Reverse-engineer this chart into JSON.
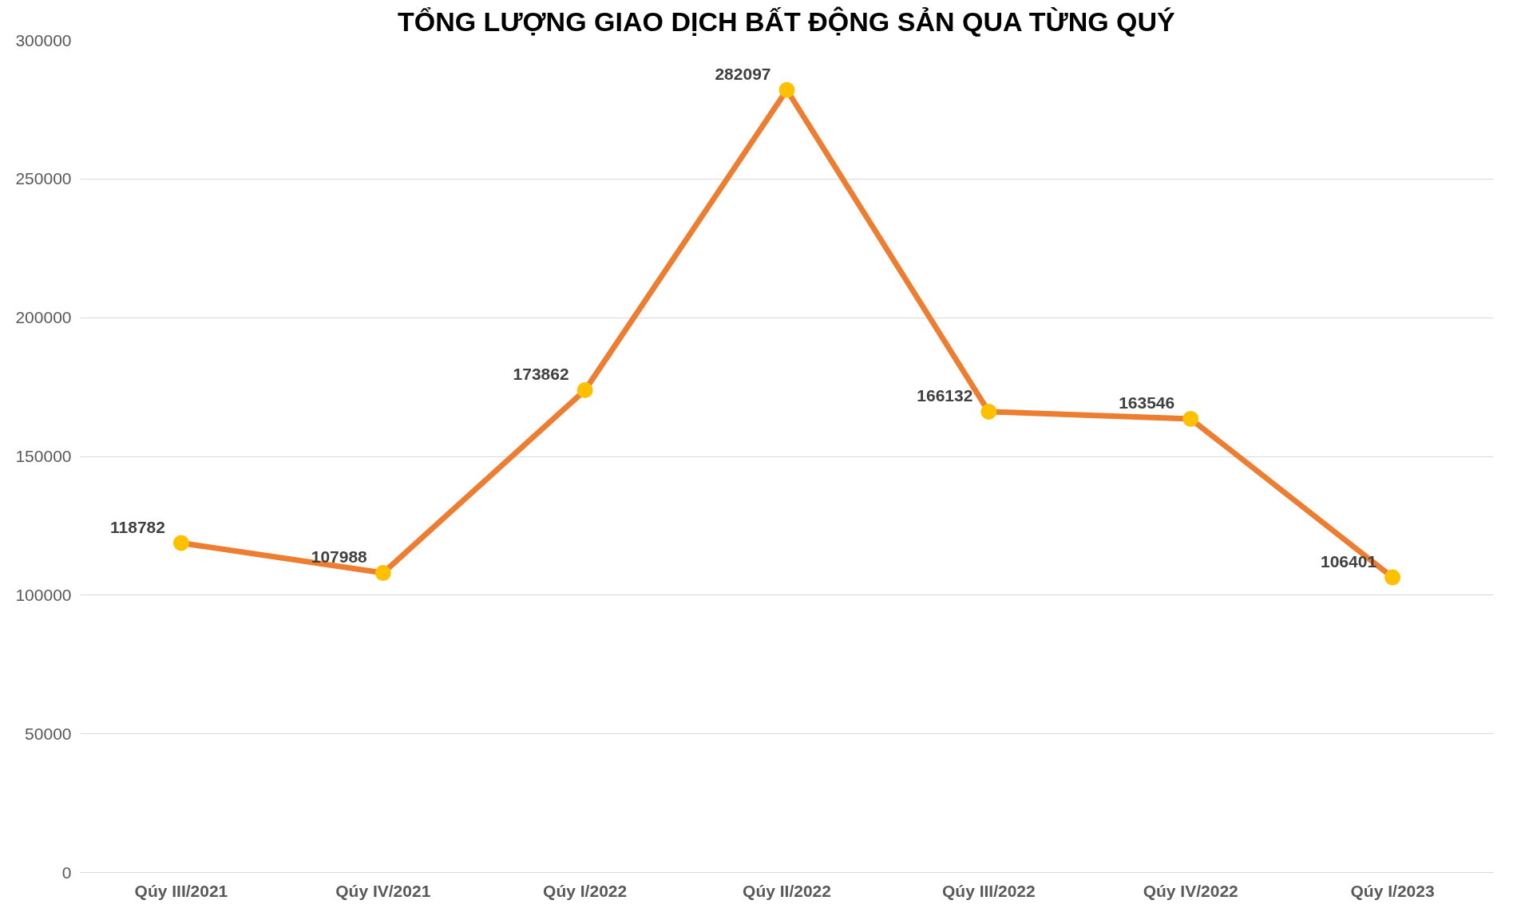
{
  "chart_data": {
    "type": "line",
    "title": "TỔNG LƯỢNG GIAO DỊCH BẤT ĐỘNG SẢN QUA TỪNG QUÝ",
    "categories": [
      "Qúy III/2021",
      "Qúy IV/2021",
      "Qúy I/2022",
      "Qúy II/2022",
      "Qúy III/2022",
      "Qúy IV/2022",
      "Qúy I/2023"
    ],
    "series": [
      {
        "color": "#ed7d31",
        "colors": [
          "#ffc000",
          "#ffc000",
          "#ffc000",
          "#ffc000",
          "#ffc000",
          "#ffc000",
          "#ffc000"
        ],
        "values": [
          118782,
          107988,
          173862,
          282097,
          166132,
          163546,
          106401
        ]
      }
    ],
    "ylim": [
      0,
      300000
    ],
    "yticks": [
      {
        "value": 0,
        "label": "0"
      },
      {
        "value": 50000,
        "label": "50000"
      },
      {
        "value": 100000,
        "label": "100000"
      },
      {
        "value": 150000,
        "label": "150000"
      },
      {
        "value": 200000,
        "label": "200000"
      },
      {
        "value": 250000,
        "label": "250000"
      },
      {
        "value": 300000,
        "label": "300000"
      }
    ],
    "grid": "y",
    "marker": "circle",
    "line_style": "solid",
    "data_labels": true
  }
}
